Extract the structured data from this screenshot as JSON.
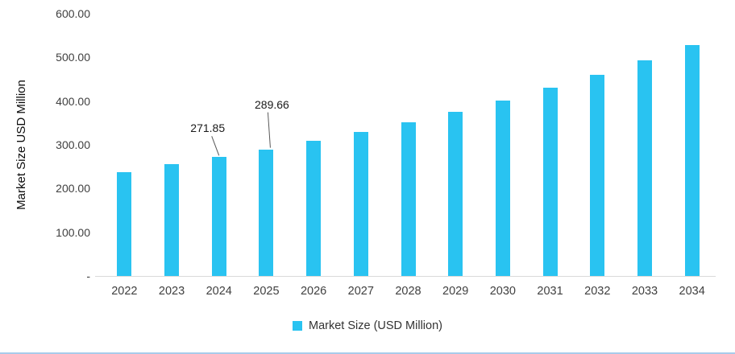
{
  "chart_data": {
    "type": "bar",
    "title": "",
    "categories": [
      "2022",
      "2023",
      "2024",
      "2025",
      "2026",
      "2027",
      "2028",
      "2029",
      "2030",
      "2031",
      "2032",
      "2033",
      "2034"
    ],
    "values": [
      238,
      256,
      271.85,
      289.66,
      309,
      329,
      351,
      376,
      402,
      430,
      460,
      493,
      529
    ],
    "xlabel": "",
    "ylabel": "Market Size USD Million",
    "ylim": [
      0,
      600
    ],
    "ytick_step": 100,
    "ytick_labels": [
      "-",
      "100.00",
      "200.00",
      "300.00",
      "400.00",
      "500.00",
      "600.00"
    ],
    "grid": false,
    "bar_color": "#29c3f1",
    "legend_position": "bottom",
    "legend": [
      {
        "label": "Market Size (USD Million)",
        "color": "#29c3f1"
      }
    ],
    "annotations": [
      {
        "category": "2024",
        "text": "271.85"
      },
      {
        "category": "2025",
        "text": "289.66"
      }
    ]
  },
  "colors": {
    "bar": "#29c3f1",
    "axis_line": "#d9d9d9",
    "leader_line": "#595959",
    "bottom_rule": "#a8cbea"
  }
}
